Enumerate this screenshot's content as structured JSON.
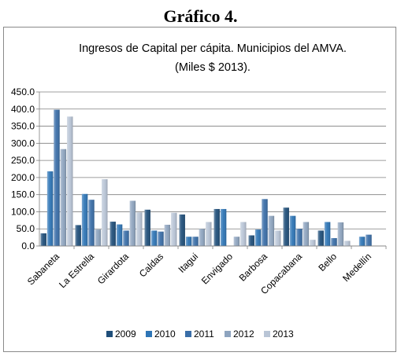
{
  "heading": "Gráfico 4.",
  "chart_data": {
    "type": "bar",
    "title_lines": [
      "Ingresos de Capital per cápita. Municipios del AMVA.",
      "(Miles $ 2013)."
    ],
    "categories": [
      "Sabaneta",
      "La Estrella",
      "Girardota",
      "Caldas",
      "Itagui",
      "Envigado",
      "Barbosa",
      "Copacabana",
      "Bello",
      "Medellín"
    ],
    "series": [
      {
        "name": "2009",
        "color": "#1f4e79",
        "values": [
          37,
          61,
          71,
          106,
          92,
          108,
          31,
          112,
          45,
          0
        ]
      },
      {
        "name": "2010",
        "color": "#2e75b6",
        "values": [
          218,
          152,
          63,
          45,
          27,
          108,
          48,
          88,
          70,
          27
        ]
      },
      {
        "name": "2011",
        "color": "#3a6ea8",
        "values": [
          398,
          135,
          45,
          42,
          27,
          0,
          137,
          50,
          23,
          33
        ]
      },
      {
        "name": "2012",
        "color": "#8ea4bf",
        "values": [
          283,
          48,
          132,
          62,
          50,
          27,
          88,
          70,
          69,
          0
        ]
      },
      {
        "name": "2013",
        "color": "#b9c5d6",
        "values": [
          378,
          195,
          98,
          97,
          70,
          70,
          45,
          18,
          15,
          0
        ]
      }
    ],
    "yticks": [
      "0.0",
      "50.0",
      "100.0",
      "150.0",
      "200.0",
      "250.0",
      "300.0",
      "350.0",
      "400.0",
      "450.0"
    ],
    "ylim": [
      0,
      450
    ],
    "grid": true,
    "legend_position": "bottom"
  }
}
